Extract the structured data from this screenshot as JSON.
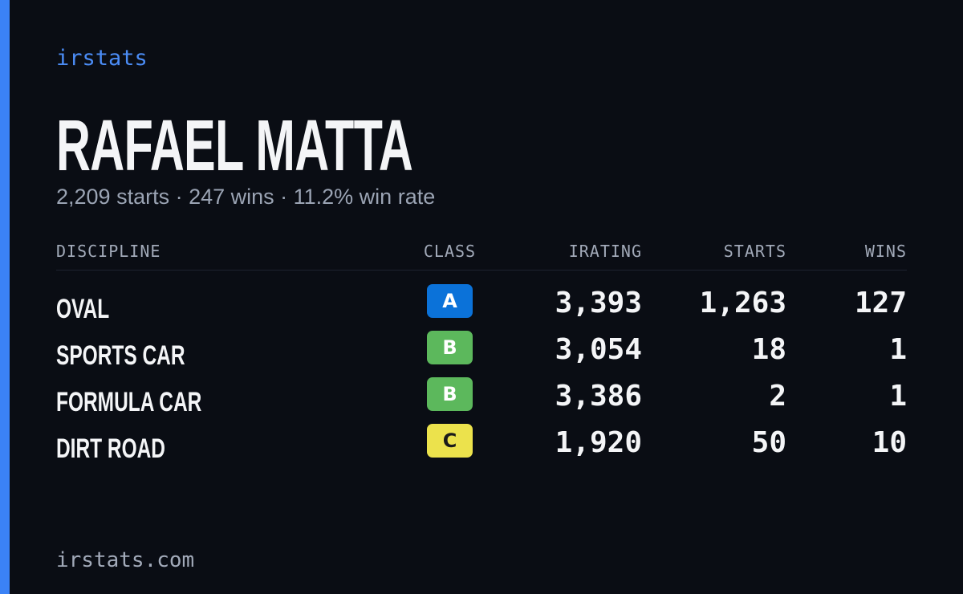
{
  "brand": "irstats",
  "title": "RAFAEL MATTA",
  "subtitle": "2,209 starts · 247 wins · 11.2% win rate",
  "table": {
    "headers": [
      "DISCIPLINE",
      "CLASS",
      "IRATING",
      "STARTS",
      "WINS"
    ],
    "rows": [
      [
        "OVAL",
        "A",
        "3,393",
        "1,263",
        "127"
      ],
      [
        "SPORTS CAR",
        "B",
        "3,054",
        "18",
        "1"
      ],
      [
        "FORMULA CAR",
        "B",
        "3,386",
        "2",
        "1"
      ],
      [
        "DIRT ROAD",
        "C",
        "1,920",
        "50",
        "10"
      ]
    ],
    "class_colors": {
      "A": "#0b72d9",
      "B": "#5cb85c",
      "C": "#ece24c"
    },
    "class_text_colors": {
      "A": "#ffffff",
      "B": "#ffffff",
      "C": "#1a1a1a"
    }
  },
  "footer": "irstats.com"
}
